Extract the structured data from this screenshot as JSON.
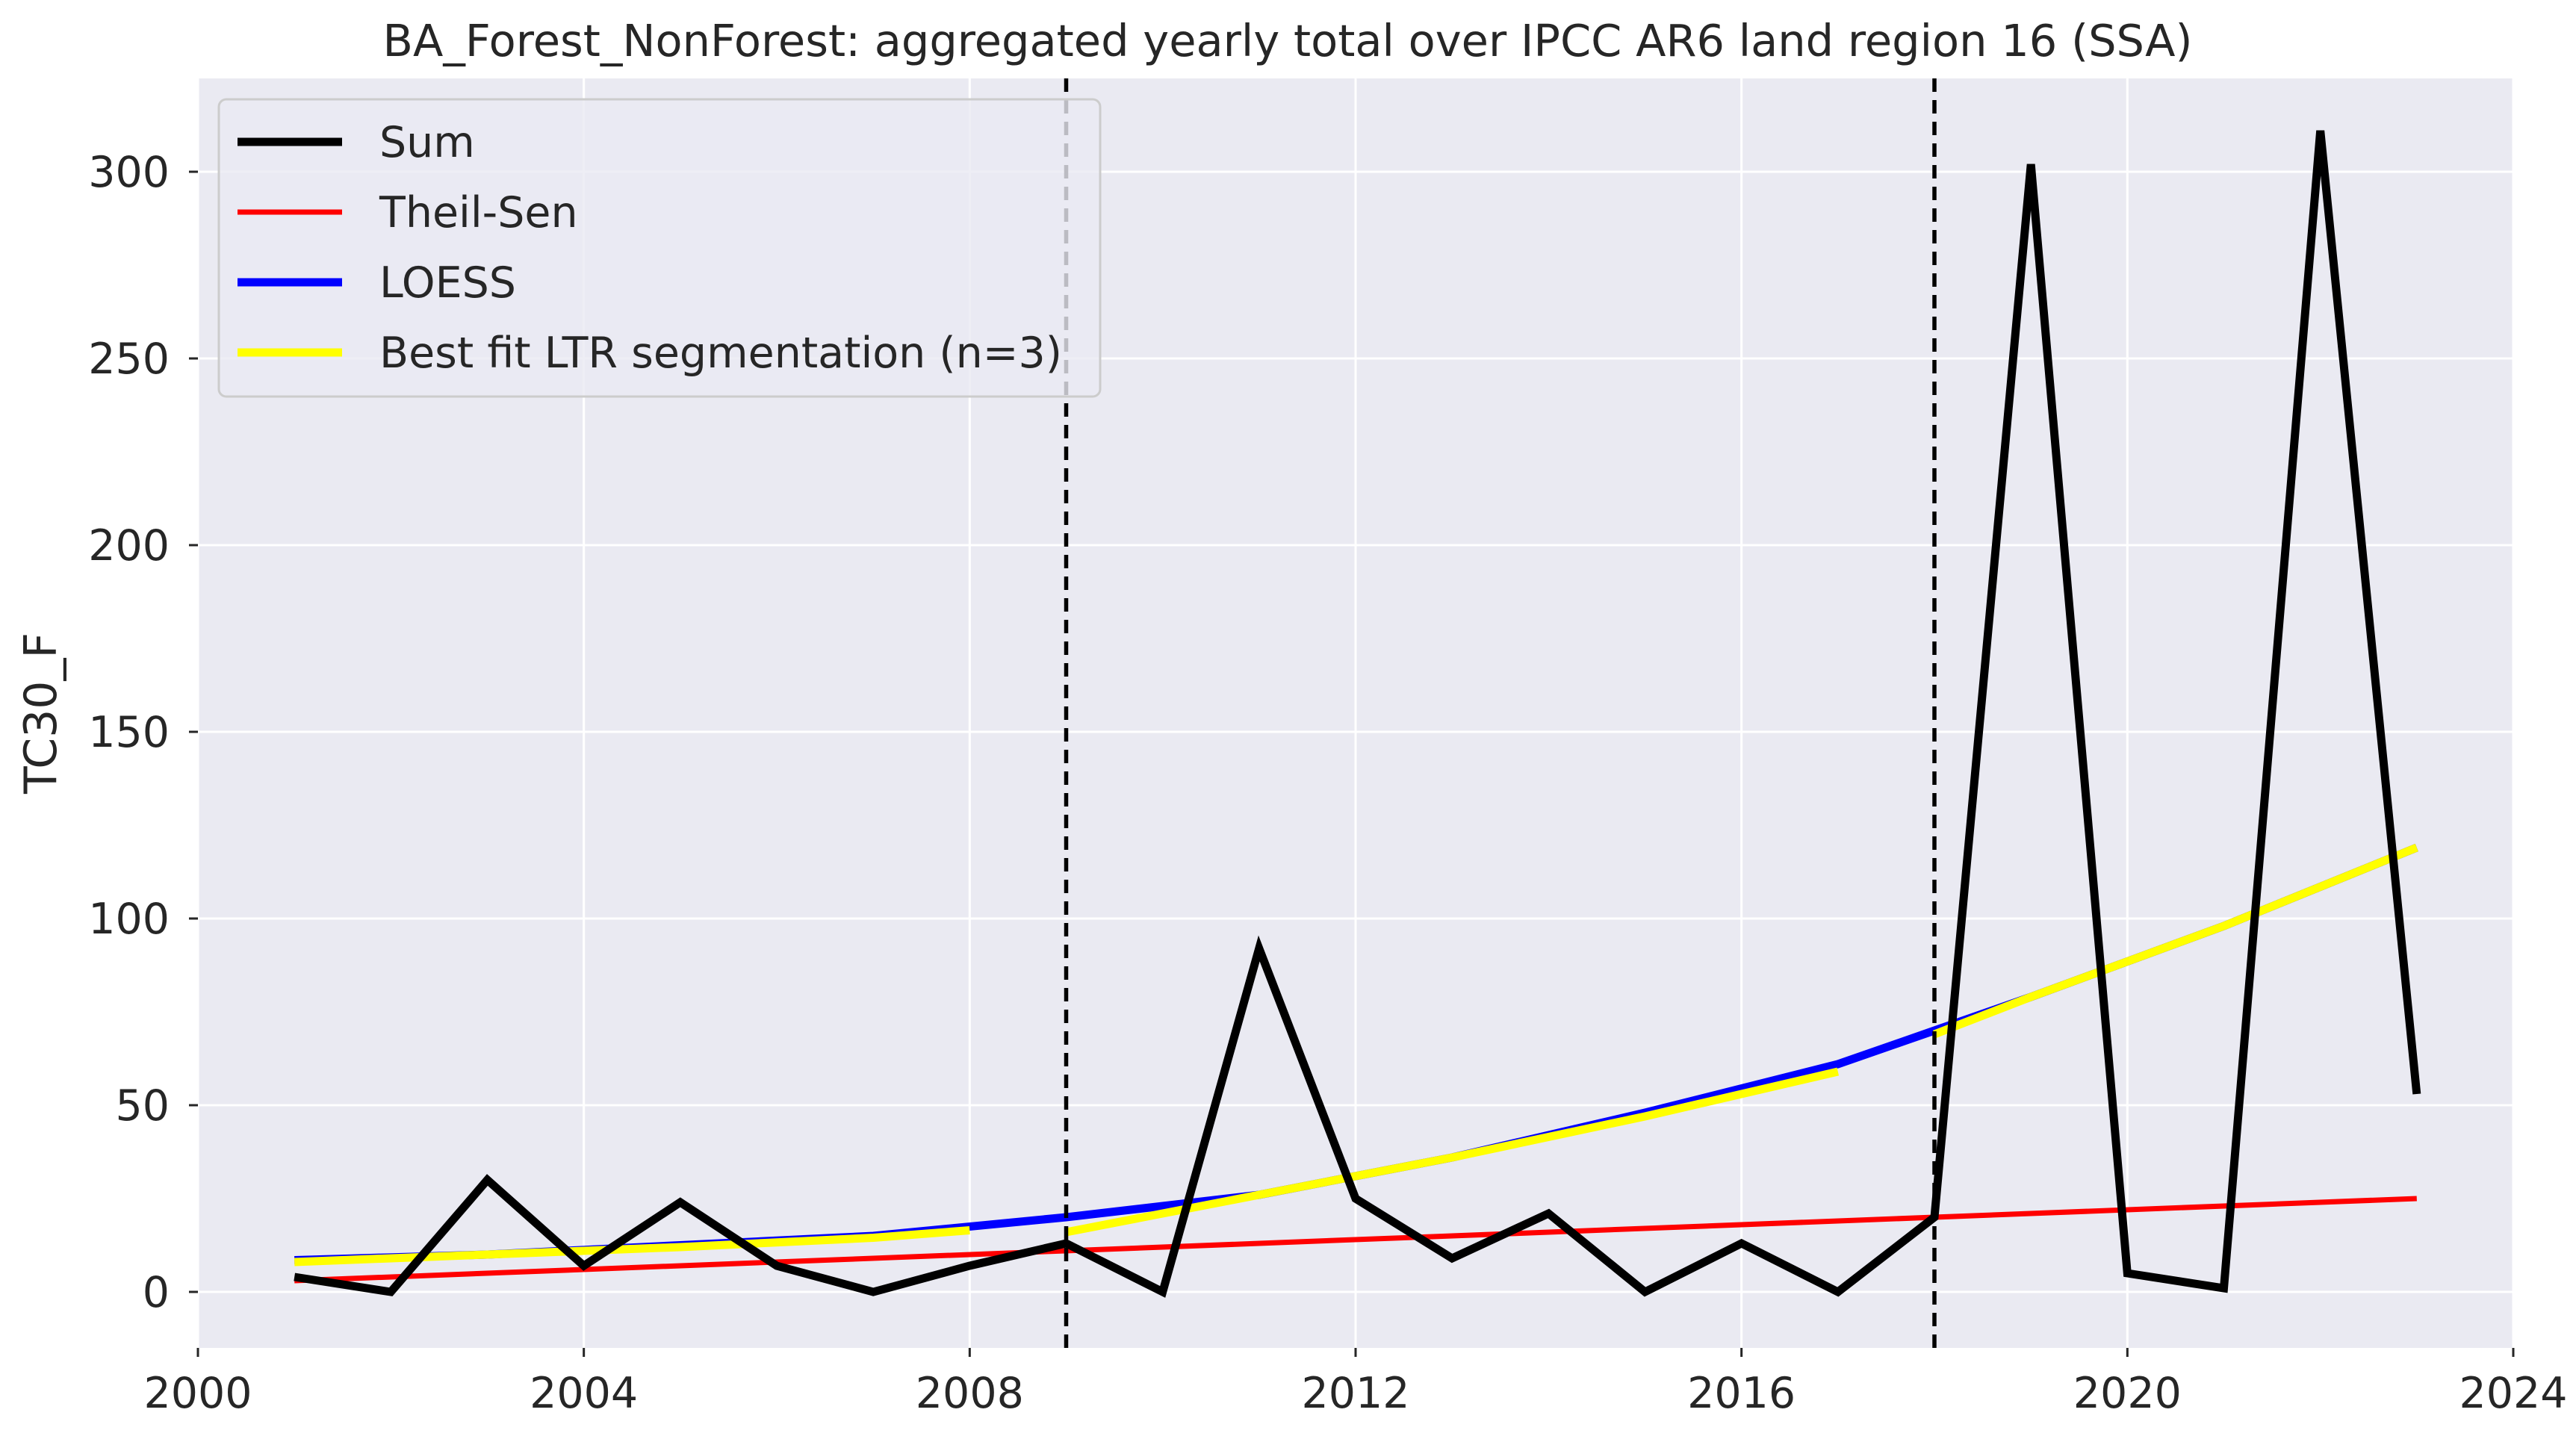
{
  "chart_data": {
    "type": "line",
    "title": "BA_Forest_NonForest: aggregated yearly total over IPCC AR6 land region 16 (SSA)",
    "xlabel": "",
    "ylabel": "TC30_F",
    "xlim": [
      2000,
      2024
    ],
    "ylim": [
      -15,
      325
    ],
    "xticks": [
      2000,
      2004,
      2008,
      2012,
      2016,
      2020,
      2024
    ],
    "yticks": [
      0,
      50,
      100,
      150,
      200,
      250,
      300
    ],
    "grid": true,
    "legend_position": "top-left",
    "breakpoints": [
      2009,
      2018
    ],
    "series": [
      {
        "name": "Sum",
        "color": "#000000",
        "x": [
          2001,
          2002,
          2003,
          2004,
          2005,
          2006,
          2007,
          2008,
          2009,
          2010,
          2011,
          2012,
          2013,
          2014,
          2015,
          2016,
          2017,
          2018,
          2019,
          2020,
          2021,
          2022,
          2023
        ],
        "y": [
          4,
          0,
          30,
          7,
          24,
          7,
          0,
          7,
          13,
          0,
          92,
          25,
          9,
          21,
          0,
          13,
          0,
          20,
          302,
          5,
          1,
          311,
          53
        ]
      },
      {
        "name": "Theil-Sen",
        "color": "#ff0000",
        "x": [
          2001,
          2023
        ],
        "y": [
          3,
          25
        ]
      },
      {
        "name": "LOESS",
        "color": "#0000ff",
        "x": [
          2001,
          2003,
          2005,
          2007,
          2009,
          2011,
          2013,
          2015,
          2017,
          2018,
          2019,
          2021,
          2023
        ],
        "y": [
          8.5,
          10,
          12.5,
          15,
          20,
          26,
          36,
          48,
          61,
          70,
          79,
          98,
          119
        ]
      },
      {
        "name": "Best fit LTR segmentation (n=3)",
        "color": "#ffff00",
        "segments": [
          {
            "x": [
              2001,
              2003,
              2005,
              2007,
              2008
            ],
            "y": [
              8,
              10,
              12,
              14.5,
              16.5
            ]
          },
          {
            "x": [
              2009,
              2011,
              2013,
              2015,
              2017
            ],
            "y": [
              16,
              26,
              36,
              47,
              59
            ]
          },
          {
            "x": [
              2018,
              2019,
              2021,
              2023
            ],
            "y": [
              69,
              79,
              98,
              119
            ]
          }
        ]
      }
    ]
  }
}
